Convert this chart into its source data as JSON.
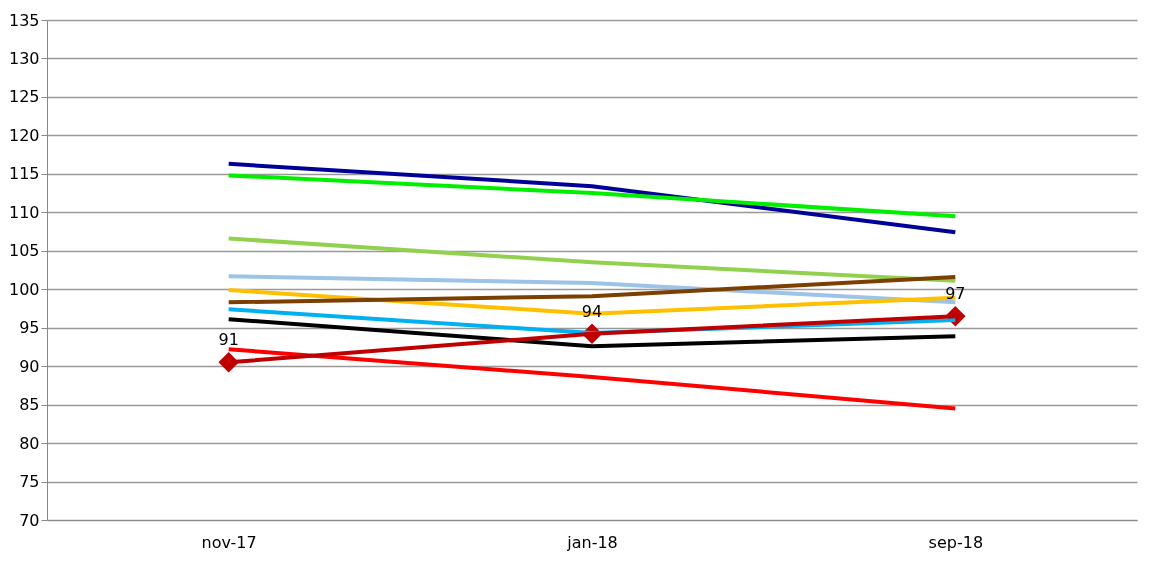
{
  "chart_data": {
    "type": "line",
    "categories": [
      "nov-17",
      "jan-18",
      "sep-18"
    ],
    "ylim": [
      70,
      135
    ],
    "yticks": [
      70,
      75,
      80,
      85,
      90,
      95,
      100,
      105,
      110,
      115,
      120,
      125,
      130,
      135
    ],
    "grid": "y",
    "series": [
      {
        "color": "#000099",
        "values": [
          116.3,
          113.4,
          107.4
        ]
      },
      {
        "color": "#00ee00",
        "values": [
          114.8,
          112.5,
          109.5
        ]
      },
      {
        "color": "#92d050",
        "values": [
          106.6,
          103.5,
          101.1
        ]
      },
      {
        "color": "#9dc3e6",
        "values": [
          101.7,
          100.8,
          98.3
        ]
      },
      {
        "color": "#ffc000",
        "values": [
          99.9,
          96.8,
          98.9
        ]
      },
      {
        "color": "#7b3f00",
        "values": [
          98.3,
          99.1,
          101.6
        ]
      },
      {
        "color": "#00b0f0",
        "values": [
          97.4,
          94.3,
          96.0
        ]
      },
      {
        "color": "#000000",
        "values": [
          96.1,
          92.6,
          93.9
        ]
      },
      {
        "color": "#ff0000",
        "values": [
          92.2,
          88.6,
          84.5
        ]
      },
      {
        "color": "#c00000",
        "values": [
          90.5,
          94.2,
          96.5
        ],
        "marker": "diamond",
        "value_labels": [
          "91",
          "94",
          "97"
        ]
      }
    ]
  }
}
